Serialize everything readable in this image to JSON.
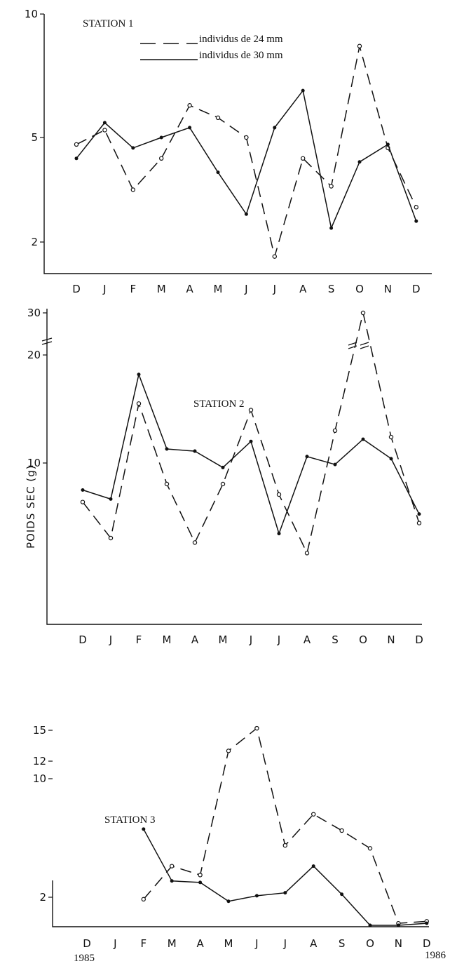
{
  "figure": {
    "ylabel": "POIDS  SEC  (g)",
    "year_start": "1985",
    "year_end": "1986"
  },
  "legend": [
    {
      "label": "individus de 24 mm",
      "style": "dashed"
    },
    {
      "label": "individus de 30 mm",
      "style": "solid"
    }
  ],
  "chart_data": [
    {
      "type": "line",
      "title": "STATION 1",
      "categories": [
        "D",
        "J",
        "F",
        "M",
        "A",
        "M",
        "J",
        "J",
        "A",
        "S",
        "O",
        "N",
        "D"
      ],
      "yticks": [
        {
          "label": "10",
          "value": 10
        },
        {
          "label": "5",
          "value": 5
        },
        {
          "label": "2",
          "value": 2
        }
      ],
      "ylim": [
        1.4,
        10
      ],
      "series": [
        {
          "name": "individus de 24 mm",
          "style": "dashed",
          "values": [
            4.8,
            5.3,
            3.5,
            4.4,
            6.3,
            5.8,
            5.0,
            1.6,
            4.4,
            3.6,
            8.7,
            4.7,
            3.0
          ]
        },
        {
          "name": "individus de 30 mm",
          "style": "solid",
          "values": [
            4.4,
            5.6,
            4.7,
            5.0,
            5.4,
            4.0,
            2.8,
            5.4,
            6.9,
            2.4,
            4.3,
            4.8,
            2.6
          ]
        }
      ]
    },
    {
      "type": "line",
      "title": "STATION 2",
      "categories": [
        "D",
        "J",
        "F",
        "M",
        "A",
        "M",
        "J",
        "J",
        "A",
        "S",
        "O",
        "N",
        "D"
      ],
      "yticks": [
        {
          "label": "30",
          "value": 30
        },
        {
          "label": "20",
          "value": 20
        },
        {
          "label": "10",
          "value": 10
        }
      ],
      "ylim": [
        0,
        30
      ],
      "series": [
        {
          "name": "individus de 24 mm",
          "style": "dashed",
          "values": [
            7.4,
            5.0,
            15.5,
            8.6,
            4.7,
            8.6,
            14.9,
            7.9,
            4.0,
            13.0,
            30.0,
            12.4,
            6.0
          ]
        },
        {
          "name": "individus de 30 mm",
          "style": "solid",
          "values": [
            8.2,
            7.6,
            18.2,
            11.3,
            11.1,
            9.7,
            12.0,
            5.3,
            10.6,
            9.9,
            12.2,
            10.4,
            6.6
          ]
        }
      ]
    },
    {
      "type": "line",
      "title": "STATION 3",
      "categories": [
        "D",
        "J",
        "F",
        "M",
        "A",
        "M",
        "J",
        "J",
        "A",
        "S",
        "O",
        "N",
        "D"
      ],
      "yticks": [
        {
          "label": "15",
          "value": 15
        },
        {
          "label": "12",
          "value": 12
        },
        {
          "label": "10",
          "value": 10
        },
        {
          "label": "2",
          "value": 2
        }
      ],
      "ylim": [
        1.3,
        15
      ],
      "series": [
        {
          "name": "individus de 24 mm",
          "style": "dashed",
          "values": [
            null,
            null,
            1.95,
            4.1,
            3.5,
            13.0,
            15.2,
            5.5,
            7.6,
            6.5,
            5.3,
            1.35,
            1.4
          ]
        },
        {
          "name": "individus de 30 mm",
          "style": "solid",
          "values": [
            null,
            null,
            6.6,
            3.1,
            3.0,
            1.9,
            2.1,
            2.3,
            4.1,
            2.2,
            1.3,
            1.3,
            1.35
          ]
        }
      ]
    }
  ]
}
